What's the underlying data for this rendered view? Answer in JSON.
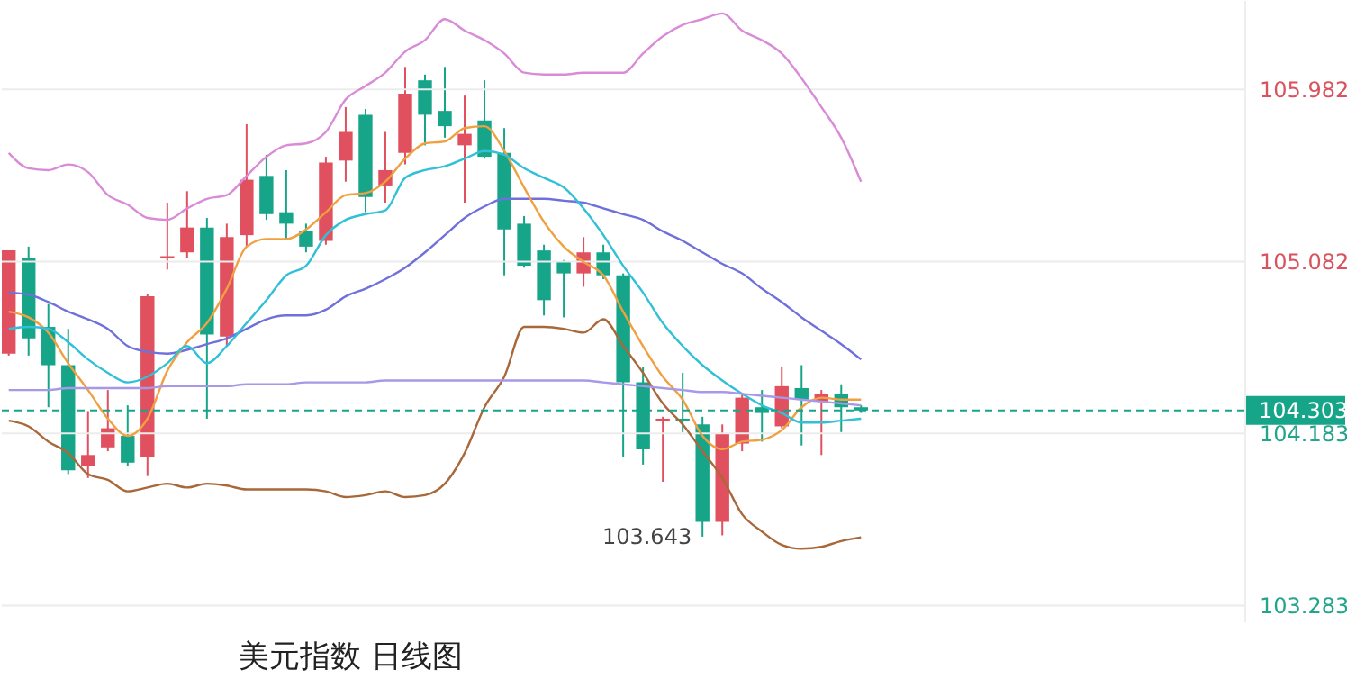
{
  "chart_data": {
    "type": "candlestick",
    "title": "美元指数 日线图",
    "categories": [
      null,
      null,
      null,
      null,
      null,
      null,
      null,
      null,
      null,
      null,
      null,
      null,
      null,
      null,
      null,
      null,
      null,
      null,
      null,
      null,
      null,
      null,
      null,
      null,
      null,
      null,
      null,
      null,
      null,
      null,
      null,
      null,
      null,
      null,
      null,
      null,
      null,
      null,
      null,
      null,
      null,
      null,
      null,
      null
    ],
    "ohlc": [
      [
        104.6,
        105.14,
        104.59,
        105.14
      ],
      [
        105.1,
        105.16,
        104.59,
        104.68
      ],
      [
        104.74,
        104.86,
        104.32,
        104.54
      ],
      [
        104.54,
        104.73,
        103.97,
        103.99
      ],
      [
        104.01,
        104.3,
        103.95,
        104.07
      ],
      [
        104.11,
        104.41,
        104.09,
        104.21
      ],
      [
        104.17,
        104.33,
        104.01,
        104.03
      ],
      [
        104.06,
        104.91,
        103.96,
        104.9
      ],
      [
        105.1,
        105.39,
        105.04,
        105.11
      ],
      [
        105.13,
        105.45,
        105.1,
        105.26
      ],
      [
        105.26,
        105.31,
        104.26,
        104.7
      ],
      [
        104.69,
        105.28,
        104.64,
        105.21
      ],
      [
        105.22,
        105.8,
        105.16,
        105.51
      ],
      [
        105.53,
        105.64,
        105.3,
        105.33
      ],
      [
        105.34,
        105.56,
        105.2,
        105.28
      ],
      [
        105.24,
        105.28,
        105.13,
        105.16
      ],
      [
        105.19,
        105.63,
        105.17,
        105.6
      ],
      [
        105.61,
        105.89,
        105.5,
        105.76
      ],
      [
        105.85,
        105.88,
        105.34,
        105.42
      ],
      [
        105.48,
        105.76,
        105.39,
        105.56
      ],
      [
        105.65,
        106.1,
        105.59,
        105.96
      ],
      [
        106.03,
        106.06,
        105.69,
        105.85
      ],
      [
        105.87,
        106.1,
        105.73,
        105.79
      ],
      [
        105.69,
        105.95,
        105.39,
        105.75
      ],
      [
        105.82,
        106.03,
        105.62,
        105.63
      ],
      [
        105.65,
        105.78,
        105.01,
        105.25
      ],
      [
        105.28,
        105.32,
        105.05,
        105.06
      ],
      [
        105.14,
        105.17,
        104.8,
        104.88
      ],
      [
        105.08,
        105.09,
        104.79,
        105.02
      ],
      [
        105.02,
        105.21,
        104.95,
        105.13
      ],
      [
        105.13,
        105.17,
        104.99,
        105.01
      ],
      [
        105.01,
        105.02,
        104.06,
        104.45
      ],
      [
        104.45,
        104.53,
        104.02,
        104.1
      ],
      [
        104.25,
        104.27,
        103.93,
        104.26
      ],
      [
        104.26,
        104.5,
        104.19,
        104.25
      ],
      [
        104.23,
        104.27,
        103.643,
        103.72
      ],
      [
        103.72,
        104.23,
        103.65,
        104.18
      ],
      [
        104.13,
        104.39,
        104.09,
        104.37
      ],
      [
        104.32,
        104.41,
        104.14,
        104.29
      ],
      [
        104.22,
        104.53,
        104.21,
        104.43
      ],
      [
        104.42,
        104.54,
        104.12,
        104.36
      ],
      [
        104.35,
        104.41,
        104.07,
        104.39
      ],
      [
        104.39,
        104.44,
        104.19,
        104.32
      ],
      [
        104.32,
        104.33,
        104.29,
        104.303
      ]
    ],
    "colors": [
      "#e0505e",
      "#17a589",
      "#17a589",
      "#17a589",
      "#e0505e",
      "#e0505e",
      "#17a589",
      "#e0505e",
      "#e0505e",
      "#e0505e",
      "#17a589",
      "#e0505e",
      "#e0505e",
      "#17a589",
      "#17a589",
      "#17a589",
      "#e0505e",
      "#e0505e",
      "#17a589",
      "#e0505e",
      "#e0505e",
      "#17a589",
      "#17a589",
      "#e0505e",
      "#17a589",
      "#17a589",
      "#17a589",
      "#17a589",
      "#17a589",
      "#e0505e",
      "#17a589",
      "#17a589",
      "#17a589",
      "#e0505e",
      "#17a589",
      "#17a589",
      "#e0505e",
      "#e0505e",
      "#17a589",
      "#e0505e",
      "#17a589",
      "#e0505e",
      "#17a589",
      "#17a589"
    ],
    "series": [
      {
        "type": "line",
        "color": "#d98bd8",
        "values": [
          105.65,
          105.57,
          105.56,
          105.59,
          105.55,
          105.43,
          105.38,
          105.31,
          105.3,
          105.36,
          105.41,
          105.43,
          105.53,
          105.63,
          105.69,
          105.7,
          105.76,
          105.93,
          106.0,
          106.07,
          106.18,
          106.24,
          106.35,
          106.29,
          106.24,
          106.17,
          106.07,
          106.06,
          106.06,
          106.07,
          106.07,
          106.07,
          106.17,
          106.26,
          106.32,
          106.35,
          106.38,
          106.29,
          106.24,
          106.17,
          106.04,
          105.89,
          105.73,
          105.5
        ]
      },
      {
        "type": "line",
        "color": "#7070dd",
        "values": [
          104.92,
          104.91,
          104.87,
          104.82,
          104.78,
          104.73,
          104.64,
          104.61,
          104.6,
          104.62,
          104.65,
          104.68,
          104.73,
          104.78,
          104.8,
          104.8,
          104.83,
          104.9,
          104.94,
          104.99,
          105.05,
          105.13,
          105.22,
          105.31,
          105.37,
          105.41,
          105.41,
          105.41,
          105.4,
          105.39,
          105.36,
          105.33,
          105.3,
          105.24,
          105.19,
          105.13,
          105.07,
          105.02,
          104.94,
          104.87,
          104.79,
          104.72,
          104.65,
          104.57
        ]
      },
      {
        "type": "line",
        "color": "#a8683a",
        "values": [
          104.25,
          104.22,
          104.14,
          104.08,
          103.97,
          103.94,
          103.88,
          103.9,
          103.92,
          103.9,
          103.92,
          103.91,
          103.89,
          103.89,
          103.89,
          103.89,
          103.88,
          103.85,
          103.86,
          103.88,
          103.85,
          103.86,
          103.92,
          104.08,
          104.32,
          104.48,
          104.74,
          104.74,
          104.73,
          104.71,
          104.78,
          104.64,
          104.5,
          104.34,
          104.23,
          104.09,
          103.95,
          103.76,
          103.67,
          103.6,
          103.58,
          103.59,
          103.62,
          103.64
        ]
      },
      {
        "type": "line",
        "color": "#f0a040",
        "values": [
          104.82,
          104.79,
          104.71,
          104.55,
          104.41,
          104.26,
          104.17,
          104.26,
          104.51,
          104.66,
          104.76,
          104.94,
          105.16,
          105.2,
          105.2,
          105.25,
          105.34,
          105.43,
          105.44,
          105.5,
          105.62,
          105.7,
          105.71,
          105.78,
          105.79,
          105.66,
          105.47,
          105.29,
          105.16,
          105.08,
          105.01,
          104.82,
          104.64,
          104.48,
          104.36,
          104.17,
          104.1,
          104.14,
          104.15,
          104.2,
          104.32,
          104.37,
          104.36,
          104.36
        ]
      },
      {
        "type": "line",
        "color": "#30c0d8",
        "values": [
          104.73,
          104.74,
          104.73,
          104.66,
          104.57,
          104.5,
          104.45,
          104.48,
          104.55,
          104.64,
          104.55,
          104.64,
          104.76,
          104.88,
          105.01,
          105.06,
          105.22,
          105.3,
          105.33,
          105.35,
          105.52,
          105.56,
          105.58,
          105.62,
          105.66,
          105.64,
          105.57,
          105.52,
          105.47,
          105.36,
          105.22,
          105.06,
          104.92,
          104.76,
          104.64,
          104.54,
          104.46,
          104.39,
          104.33,
          104.29,
          104.24,
          104.24,
          104.25,
          104.26
        ]
      },
      {
        "type": "line",
        "color": "#a898e8",
        "values": [
          104.41,
          104.41,
          104.41,
          104.42,
          104.42,
          104.42,
          104.42,
          104.42,
          104.43,
          104.43,
          104.43,
          104.43,
          104.44,
          104.44,
          104.44,
          104.45,
          104.45,
          104.45,
          104.45,
          104.46,
          104.46,
          104.46,
          104.46,
          104.46,
          104.46,
          104.46,
          104.46,
          104.46,
          104.46,
          104.46,
          104.45,
          104.44,
          104.43,
          104.42,
          104.41,
          104.4,
          104.4,
          104.39,
          104.38,
          104.37,
          104.36,
          104.35,
          104.34,
          104.33
        ]
      }
    ],
    "ylim": [
      103.2,
      106.45
    ],
    "yticks": [
      105.982,
      105.082,
      104.183,
      103.283
    ],
    "grid": "y",
    "ref_lines": [
      {
        "axis": "y",
        "value": 104.303,
        "label": "104.303",
        "color": "#17a589",
        "line_style": "dashed"
      }
    ],
    "annotations": [
      "103.643"
    ]
  }
}
